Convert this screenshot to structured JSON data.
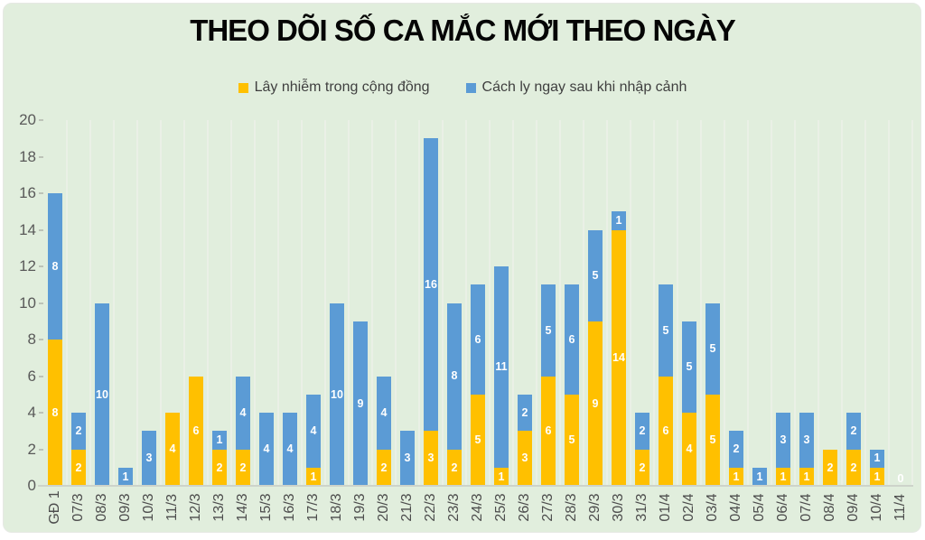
{
  "title": "THEO DÕI SỐ CA MẮC MỚI THEO NGÀY",
  "colors": {
    "panel_background": "#E1EEDD",
    "community_yellow": "#FFC000",
    "quarantine_blue": "#5B9BD5",
    "axis_text": "#595959",
    "value_label_text": "#FFFFFF",
    "title_text": "#000000"
  },
  "chart_data": {
    "type": "bar",
    "stacked": true,
    "title": "THEO DÕI SỐ CA MẮC MỚI THEO NGÀY",
    "xlabel": "",
    "ylabel": "",
    "ylim": [
      0,
      20
    ],
    "yticks": [
      0,
      2,
      4,
      6,
      8,
      10,
      12,
      14,
      16,
      18,
      20
    ],
    "grid": "vertical category separators only",
    "legend_position": "top",
    "data_labels": "white bold numbers centered in each segment; single 0 shown at 11/4",
    "categories": [
      "GĐ 1",
      "07/3",
      "08/3",
      "09/3",
      "10/3",
      "11/3",
      "12/3",
      "13/3",
      "14/3",
      "15/3",
      "16/3",
      "17/3",
      "18/3",
      "19/3",
      "20/3",
      "21/3",
      "22/3",
      "23/3",
      "24/3",
      "25/3",
      "26/3",
      "27/3",
      "28/3",
      "29/3",
      "30/3",
      "31/3",
      "01/4",
      "02/4",
      "03/4",
      "04/4",
      "05/4",
      "06/4",
      "07/4",
      "08/4",
      "09/4",
      "10/4",
      "11/4"
    ],
    "series": [
      {
        "name": "Lây nhiễm trong cộng đồng",
        "color": "#FFC000",
        "values": [
          8,
          2,
          0,
          0,
          0,
          4,
          6,
          2,
          2,
          0,
          0,
          1,
          0,
          0,
          2,
          0,
          3,
          2,
          5,
          1,
          3,
          6,
          5,
          9,
          14,
          2,
          6,
          4,
          5,
          1,
          0,
          1,
          1,
          2,
          2,
          1,
          0
        ]
      },
      {
        "name": "Cách ly ngay sau khi nhập cảnh",
        "color": "#5B9BD5",
        "values": [
          8,
          2,
          10,
          1,
          3,
          0,
          0,
          1,
          4,
          4,
          4,
          4,
          10,
          9,
          4,
          3,
          16,
          8,
          6,
          11,
          2,
          5,
          6,
          5,
          1,
          2,
          5,
          5,
          5,
          2,
          1,
          3,
          3,
          0,
          2,
          1,
          0
        ]
      }
    ],
    "zero_label_categories": [
      "11/4"
    ]
  }
}
